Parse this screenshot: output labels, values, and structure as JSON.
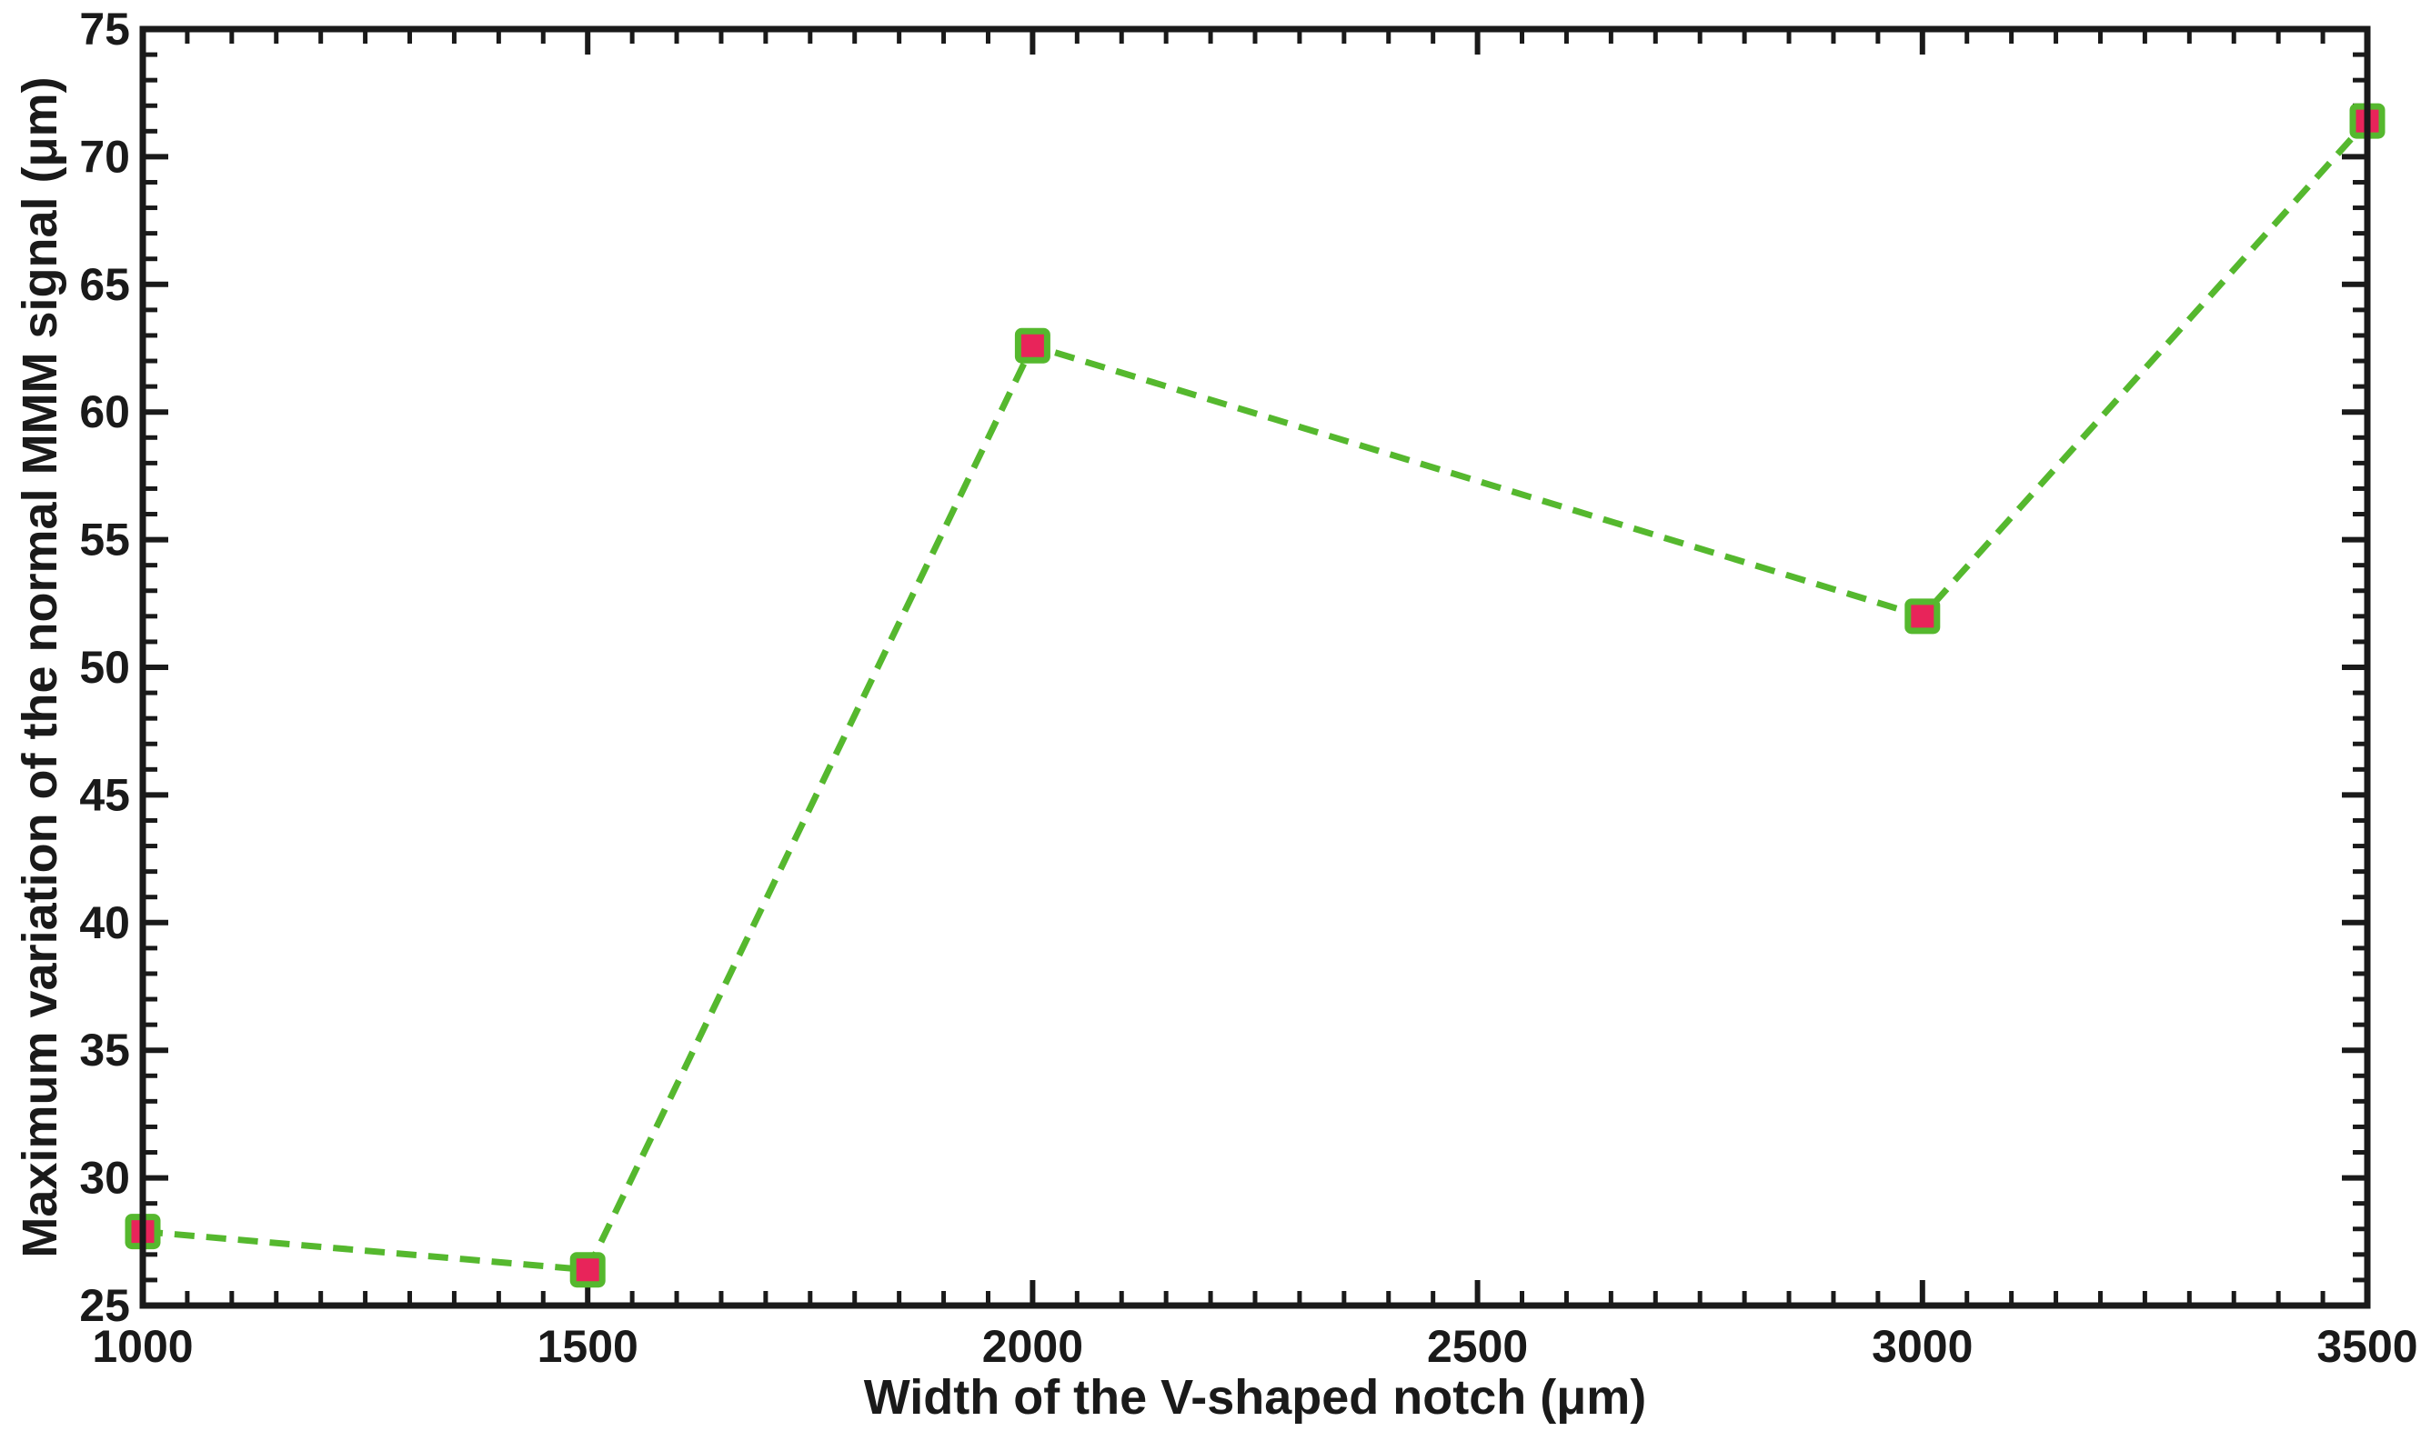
{
  "chart_data": {
    "type": "line",
    "title": "",
    "xlabel": "Width of the V-shaped notch (μm)",
    "ylabel": "Maximum variation of the normal MMM signal (μm)",
    "x_tick_labels": [
      "1000",
      "1500",
      "2000",
      "2500",
      "3000",
      "3500"
    ],
    "y_tick_labels": [
      "25",
      "30",
      "35",
      "40",
      "45",
      "50",
      "55",
      "60",
      "65",
      "70",
      "75"
    ],
    "xlim": [
      1000,
      3500
    ],
    "ylim": [
      25,
      75
    ],
    "grid": false,
    "series": [
      {
        "x": [
          1000,
          1500,
          2000,
          3000,
          3500
        ],
        "values": [
          27.9,
          26.4,
          62.6,
          52.0,
          71.4
        ],
        "line_color": "#55b82e",
        "line_style": "dashed",
        "marker": "square",
        "marker_face_color": "#e8245a",
        "marker_edge_color": "#55b82e"
      }
    ]
  }
}
